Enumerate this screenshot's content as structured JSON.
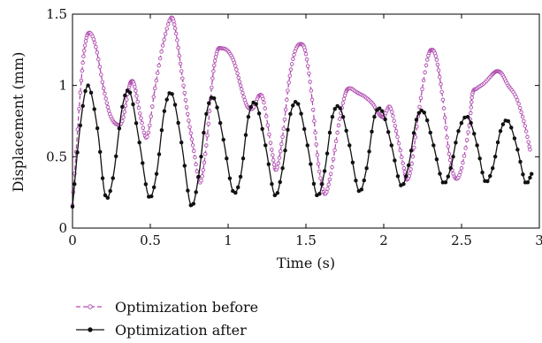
{
  "chart_data": {
    "type": "line",
    "xlabel": "Time (s)",
    "ylabel": "Displacement (mm)",
    "xlim": [
      0,
      3
    ],
    "ylim": [
      0,
      1.5
    ],
    "xticks": [
      0,
      0.5,
      1,
      1.5,
      2,
      2.5,
      3
    ],
    "xtick_labels": [
      "0",
      "0.5",
      "1",
      "1.5",
      "2",
      "2.5",
      "3"
    ],
    "yticks": [
      0,
      0.5,
      1,
      1.5
    ],
    "ytick_labels": [
      "0",
      "0.5",
      "1",
      "1.5"
    ],
    "grid": false,
    "legend_position": "below",
    "series": [
      {
        "name": "Optimization before",
        "color": "#b04cb0",
        "line_style": "dashed",
        "marker": "open-circle",
        "points": [
          [
            0.0,
            0.16
          ],
          [
            0.05,
            0.95
          ],
          [
            0.08,
            1.28
          ],
          [
            0.11,
            1.37
          ],
          [
            0.15,
            1.27
          ],
          [
            0.2,
            0.98
          ],
          [
            0.24,
            0.8
          ],
          [
            0.28,
            0.73
          ],
          [
            0.32,
            0.75
          ],
          [
            0.36,
            0.97
          ],
          [
            0.38,
            1.03
          ],
          [
            0.4,
            0.99
          ],
          [
            0.44,
            0.77
          ],
          [
            0.48,
            0.64
          ],
          [
            0.53,
            0.98
          ],
          [
            0.58,
            1.28
          ],
          [
            0.63,
            1.47
          ],
          [
            0.66,
            1.4
          ],
          [
            0.7,
            1.1
          ],
          [
            0.74,
            0.8
          ],
          [
            0.78,
            0.54
          ],
          [
            0.82,
            0.32
          ],
          [
            0.86,
            0.58
          ],
          [
            0.9,
            1.05
          ],
          [
            0.93,
            1.24
          ],
          [
            0.96,
            1.26
          ],
          [
            1.0,
            1.24
          ],
          [
            1.04,
            1.16
          ],
          [
            1.08,
            1.0
          ],
          [
            1.12,
            0.86
          ],
          [
            1.16,
            0.84
          ],
          [
            1.2,
            0.93
          ],
          [
            1.23,
            0.88
          ],
          [
            1.28,
            0.55
          ],
          [
            1.31,
            0.41
          ],
          [
            1.35,
            0.64
          ],
          [
            1.39,
            1.02
          ],
          [
            1.43,
            1.24
          ],
          [
            1.47,
            1.29
          ],
          [
            1.5,
            1.22
          ],
          [
            1.54,
            0.9
          ],
          [
            1.58,
            0.45
          ],
          [
            1.62,
            0.24
          ],
          [
            1.66,
            0.38
          ],
          [
            1.71,
            0.72
          ],
          [
            1.75,
            0.93
          ],
          [
            1.78,
            0.98
          ],
          [
            1.83,
            0.95
          ],
          [
            1.88,
            0.92
          ],
          [
            1.93,
            0.87
          ],
          [
            1.97,
            0.8
          ],
          [
            2.0,
            0.78
          ],
          [
            2.04,
            0.85
          ],
          [
            2.08,
            0.68
          ],
          [
            2.13,
            0.42
          ],
          [
            2.15,
            0.34
          ],
          [
            2.18,
            0.45
          ],
          [
            2.23,
            0.85
          ],
          [
            2.28,
            1.18
          ],
          [
            2.31,
            1.25
          ],
          [
            2.34,
            1.18
          ],
          [
            2.38,
            0.9
          ],
          [
            2.42,
            0.52
          ],
          [
            2.46,
            0.35
          ],
          [
            2.5,
            0.42
          ],
          [
            2.55,
            0.72
          ],
          [
            2.57,
            0.94
          ],
          [
            2.6,
            0.98
          ],
          [
            2.65,
            1.02
          ],
          [
            2.7,
            1.08
          ],
          [
            2.73,
            1.1
          ],
          [
            2.76,
            1.08
          ],
          [
            2.8,
            1.0
          ],
          [
            2.85,
            0.92
          ],
          [
            2.9,
            0.75
          ],
          [
            2.94,
            0.55
          ]
        ]
      },
      {
        "name": "Optimization after",
        "color": "#111111",
        "line_style": "solid",
        "marker": "filled-circle",
        "points": [
          [
            0.0,
            0.15
          ],
          [
            0.05,
            0.72
          ],
          [
            0.1,
            1.0
          ],
          [
            0.16,
            0.7
          ],
          [
            0.21,
            0.23
          ],
          [
            0.26,
            0.35
          ],
          [
            0.32,
            0.85
          ],
          [
            0.37,
            0.95
          ],
          [
            0.43,
            0.6
          ],
          [
            0.49,
            0.22
          ],
          [
            0.54,
            0.38
          ],
          [
            0.59,
            0.82
          ],
          [
            0.64,
            0.94
          ],
          [
            0.7,
            0.6
          ],
          [
            0.76,
            0.16
          ],
          [
            0.81,
            0.36
          ],
          [
            0.86,
            0.8
          ],
          [
            0.91,
            0.91
          ],
          [
            0.97,
            0.62
          ],
          [
            1.03,
            0.26
          ],
          [
            1.08,
            0.36
          ],
          [
            1.13,
            0.78
          ],
          [
            1.18,
            0.87
          ],
          [
            1.24,
            0.58
          ],
          [
            1.3,
            0.23
          ],
          [
            1.35,
            0.42
          ],
          [
            1.4,
            0.8
          ],
          [
            1.45,
            0.87
          ],
          [
            1.51,
            0.58
          ],
          [
            1.57,
            0.23
          ],
          [
            1.62,
            0.4
          ],
          [
            1.67,
            0.78
          ],
          [
            1.72,
            0.84
          ],
          [
            1.78,
            0.58
          ],
          [
            1.84,
            0.26
          ],
          [
            1.89,
            0.42
          ],
          [
            1.94,
            0.78
          ],
          [
            1.99,
            0.82
          ],
          [
            2.05,
            0.58
          ],
          [
            2.11,
            0.3
          ],
          [
            2.16,
            0.44
          ],
          [
            2.21,
            0.76
          ],
          [
            2.26,
            0.81
          ],
          [
            2.32,
            0.58
          ],
          [
            2.38,
            0.32
          ],
          [
            2.43,
            0.42
          ],
          [
            2.48,
            0.68
          ],
          [
            2.54,
            0.78
          ],
          [
            2.6,
            0.58
          ],
          [
            2.65,
            0.33
          ],
          [
            2.7,
            0.42
          ],
          [
            2.75,
            0.68
          ],
          [
            2.8,
            0.75
          ],
          [
            2.86,
            0.55
          ],
          [
            2.91,
            0.32
          ],
          [
            2.95,
            0.38
          ]
        ]
      }
    ]
  }
}
